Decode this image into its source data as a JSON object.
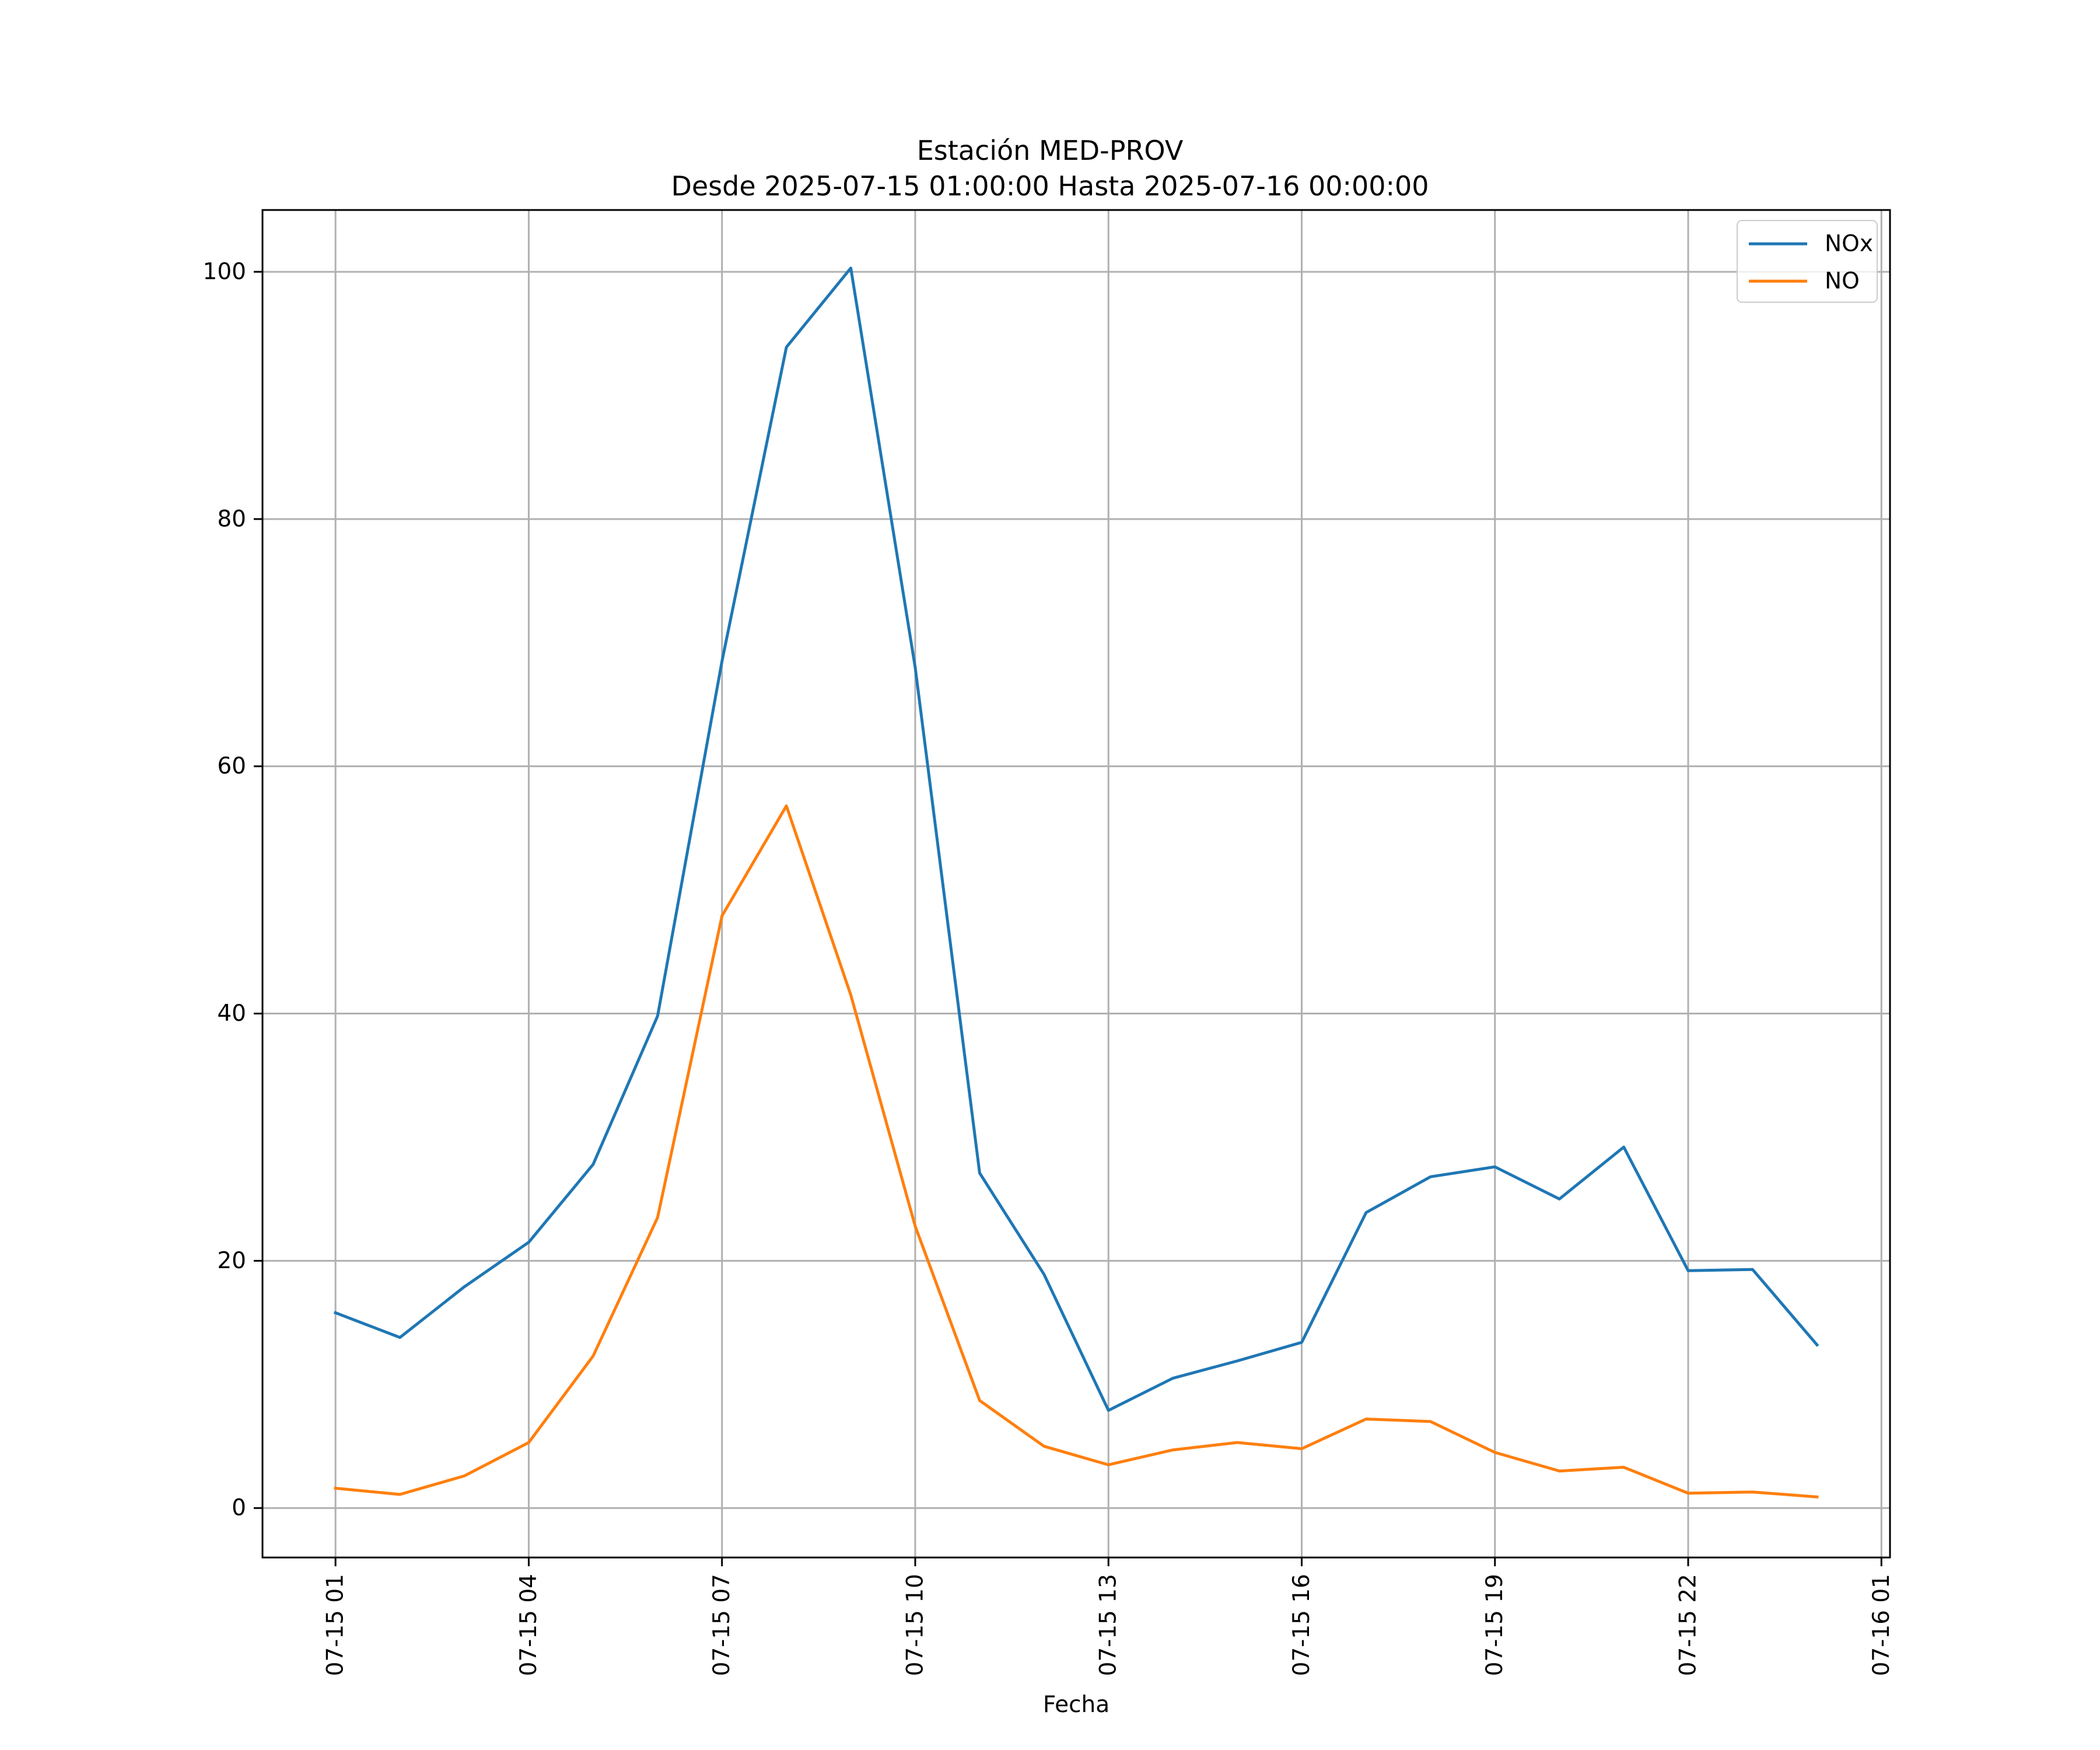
{
  "chart_data": {
    "type": "line",
    "title": "Estación MED-PROV",
    "subtitle": "Desde 2025-07-15 01:00:00 Hasta 2025-07-16 00:00:00",
    "xlabel": "Fecha",
    "ylabel": "",
    "x": [
      "2025-07-15 01:00",
      "2025-07-15 02:00",
      "2025-07-15 03:00",
      "2025-07-15 04:00",
      "2025-07-15 05:00",
      "2025-07-15 06:00",
      "2025-07-15 07:00",
      "2025-07-15 08:00",
      "2025-07-15 09:00",
      "2025-07-15 10:00",
      "2025-07-15 11:00",
      "2025-07-15 12:00",
      "2025-07-15 13:00",
      "2025-07-15 14:00",
      "2025-07-15 15:00",
      "2025-07-15 16:00",
      "2025-07-15 17:00",
      "2025-07-15 18:00",
      "2025-07-15 19:00",
      "2025-07-15 20:00",
      "2025-07-15 21:00",
      "2025-07-15 22:00",
      "2025-07-15 23:00",
      "2025-07-16 00:00"
    ],
    "xlim": [
      "2025-07-14 23:52",
      "2025-07-16 01:08"
    ],
    "ylim": [
      -4,
      105
    ],
    "xticks": [
      {
        "at": "2025-07-15 01:00",
        "label": "07-15 01"
      },
      {
        "at": "2025-07-15 04:00",
        "label": "07-15 04"
      },
      {
        "at": "2025-07-15 07:00",
        "label": "07-15 07"
      },
      {
        "at": "2025-07-15 10:00",
        "label": "07-15 10"
      },
      {
        "at": "2025-07-15 13:00",
        "label": "07-15 13"
      },
      {
        "at": "2025-07-15 16:00",
        "label": "07-15 16"
      },
      {
        "at": "2025-07-15 19:00",
        "label": "07-15 19"
      },
      {
        "at": "2025-07-15 22:00",
        "label": "07-15 22"
      },
      {
        "at": "2025-07-16 01:00",
        "label": "07-16 01"
      }
    ],
    "yticks": [
      {
        "at": 0,
        "label": "0"
      },
      {
        "at": 20,
        "label": "20"
      },
      {
        "at": 40,
        "label": "40"
      },
      {
        "at": 60,
        "label": "60"
      },
      {
        "at": 80,
        "label": "80"
      },
      {
        "at": 100,
        "label": "100"
      }
    ],
    "grid": true,
    "legend_position": "top-right",
    "series": [
      {
        "name": "NOx",
        "color": "#1f77b4",
        "values": [
          15.8,
          13.8,
          17.9,
          21.5,
          27.8,
          39.8,
          68.5,
          93.9,
          100.3,
          68.0,
          27.1,
          18.9,
          7.9,
          10.5,
          11.9,
          13.4,
          23.9,
          26.8,
          27.6,
          25.0,
          29.2,
          19.2,
          19.3,
          13.2
        ]
      },
      {
        "name": "NO",
        "color": "#ff7f0e",
        "values": [
          1.6,
          1.1,
          2.6,
          5.3,
          12.3,
          23.5,
          47.9,
          56.8,
          41.5,
          22.8,
          8.7,
          5.0,
          3.5,
          4.7,
          5.3,
          4.8,
          7.2,
          7.0,
          4.5,
          3.0,
          3.3,
          1.2,
          1.3,
          0.9
        ]
      }
    ]
  }
}
